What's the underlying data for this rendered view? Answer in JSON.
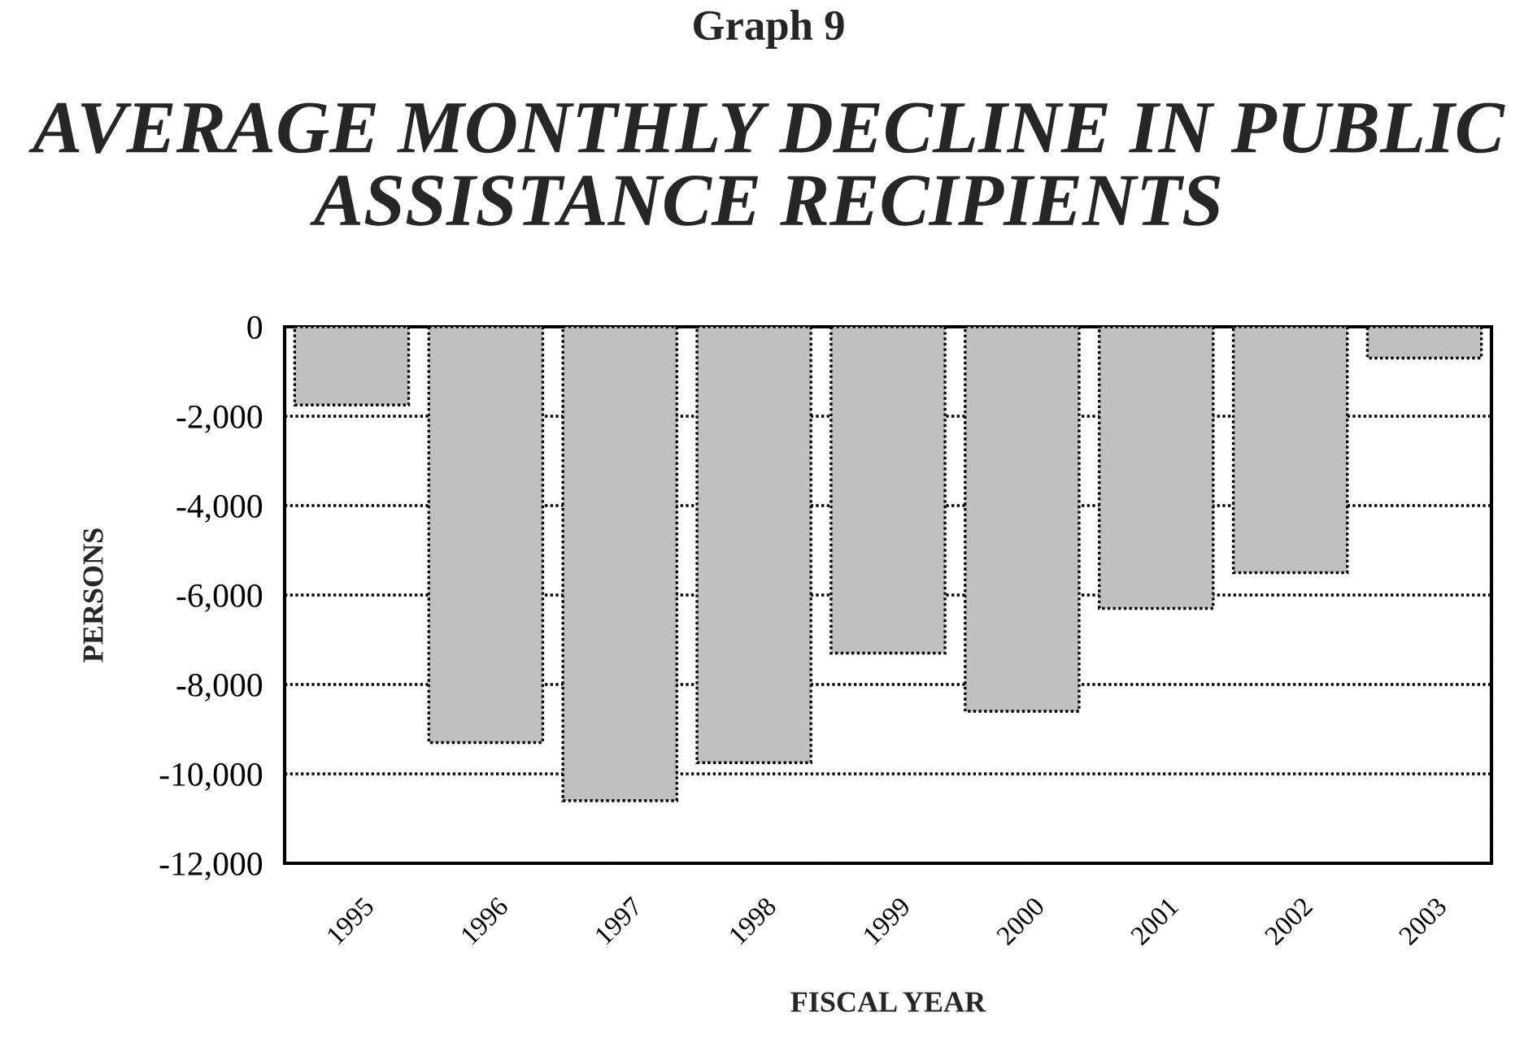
{
  "chart_data": {
    "type": "bar",
    "title": "Graph 9",
    "subtitle": "AVERAGE MONTHLY DECLINE IN PUBLIC ASSISTANCE RECIPIENTS",
    "xlabel": "FISCAL YEAR",
    "ylabel": "PERSONS",
    "categories": [
      "1995",
      "1996",
      "1997",
      "1998",
      "1999",
      "2000",
      "2001",
      "2002",
      "2003"
    ],
    "values": [
      -1750,
      -9300,
      -10600,
      -9750,
      -7300,
      -8600,
      -6300,
      -5500,
      -700
    ],
    "color": "#c0c0c0",
    "ylim": [
      -12000,
      0
    ],
    "yticks": [
      {
        "value": 0,
        "label": "0"
      },
      {
        "value": -2000,
        "label": "-2,000"
      },
      {
        "value": -4000,
        "label": "-4,000"
      },
      {
        "value": -6000,
        "label": "-6,000"
      },
      {
        "value": -8000,
        "label": "-8,000"
      },
      {
        "value": -10000,
        "label": "-10,000"
      },
      {
        "value": -12000,
        "label": "-12,000"
      }
    ],
    "grid": "y",
    "legend": false
  }
}
